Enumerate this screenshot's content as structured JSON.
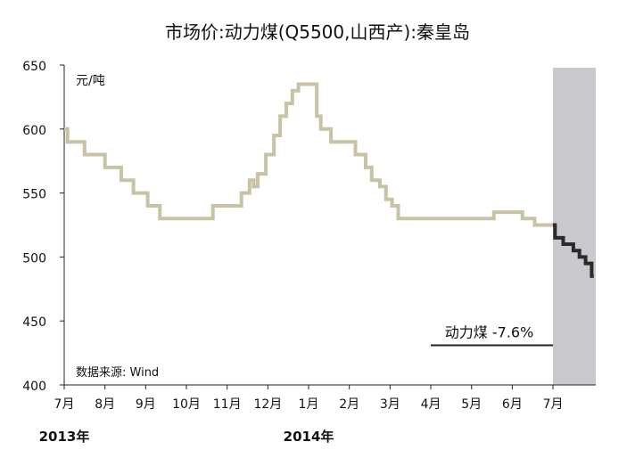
{
  "chart_data": {
    "type": "line",
    "title": "市场价:动力煤(Q5500,山西产):秦皇岛",
    "unit_label": "元/吨",
    "source_note": "数据来源: Wind",
    "ylim": [
      400,
      650
    ],
    "yticks": [
      650,
      600,
      550,
      500,
      450,
      400
    ],
    "x_tick_labels": [
      "7月",
      "8月",
      "9月",
      "10月",
      "11月",
      "12月",
      "1月",
      "2月",
      "3月",
      "4月",
      "5月",
      "6月",
      "7月"
    ],
    "x_tick_positions": [
      0,
      1,
      2,
      3,
      4,
      5,
      6,
      7,
      8,
      9,
      10,
      11,
      12
    ],
    "x_year_labels": [
      {
        "label": "2013年",
        "x": 0
      },
      {
        "label": "2014年",
        "x": 6
      }
    ],
    "xlim": [
      0,
      13.05
    ],
    "shaded_region": [
      12,
      13.05
    ],
    "series": [
      {
        "name": "",
        "color": "#c8c3a4",
        "x": [
          0,
          0.08,
          0.08,
          0.5,
          0.5,
          1.0,
          1.0,
          1.4,
          1.4,
          1.7,
          1.7,
          1.85,
          1.85,
          2.05,
          2.05,
          2.35,
          2.35,
          2.65,
          2.65,
          3.0,
          3.0,
          3.4,
          3.4,
          3.65,
          3.65,
          4.0,
          4.0,
          4.35,
          4.35,
          4.55,
          4.55,
          4.65,
          4.65,
          4.75,
          4.75,
          4.95,
          4.95,
          5.15,
          5.15,
          5.3,
          5.3,
          5.45,
          5.45,
          5.6,
          5.6,
          5.75,
          5.75,
          5.9,
          5.9,
          6.2,
          6.2,
          6.3,
          6.3,
          6.55,
          6.55,
          6.75,
          6.75,
          7.15,
          7.15,
          7.4,
          7.4,
          7.55,
          7.55,
          7.75,
          7.75,
          7.9,
          7.9,
          8.05,
          8.05,
          8.2,
          8.2,
          8.35,
          8.35,
          8.55,
          8.55,
          8.75,
          8.75,
          10.55,
          10.55,
          11.25,
          11.25,
          11.55,
          11.55,
          12.0
        ],
        "y": [
          600,
          600,
          590,
          590,
          580,
          580,
          570,
          570,
          560,
          560,
          550,
          550,
          550,
          550,
          540,
          540,
          530,
          530,
          530,
          530,
          530,
          530,
          530,
          530,
          540,
          540,
          540,
          540,
          550,
          550,
          560,
          560,
          555,
          555,
          565,
          565,
          580,
          580,
          595,
          595,
          610,
          610,
          620,
          620,
          630,
          630,
          635,
          635,
          635,
          635,
          610,
          610,
          600,
          600,
          590,
          590,
          590,
          590,
          580,
          580,
          570,
          570,
          560,
          560,
          555,
          555,
          545,
          545,
          540,
          540,
          530,
          530,
          530,
          530,
          530,
          530,
          530,
          530,
          535,
          535,
          530,
          530,
          525,
          525
        ]
      },
      {
        "name": "动力煤 -7.6%",
        "color": "#2b2b2b",
        "x": [
          12.0,
          12.05,
          12.05,
          12.25,
          12.25,
          12.5,
          12.5,
          12.65,
          12.65,
          12.8,
          12.8,
          12.95,
          12.95,
          13.0
        ],
        "y": [
          525,
          525,
          515,
          515,
          510,
          510,
          505,
          505,
          500,
          500,
          495,
          495,
          485,
          485
        ]
      }
    ],
    "annotation": {
      "text": "动力煤 -7.6%",
      "x0": 9.0,
      "x1": 12.0,
      "y": 440
    },
    "grid": false
  }
}
